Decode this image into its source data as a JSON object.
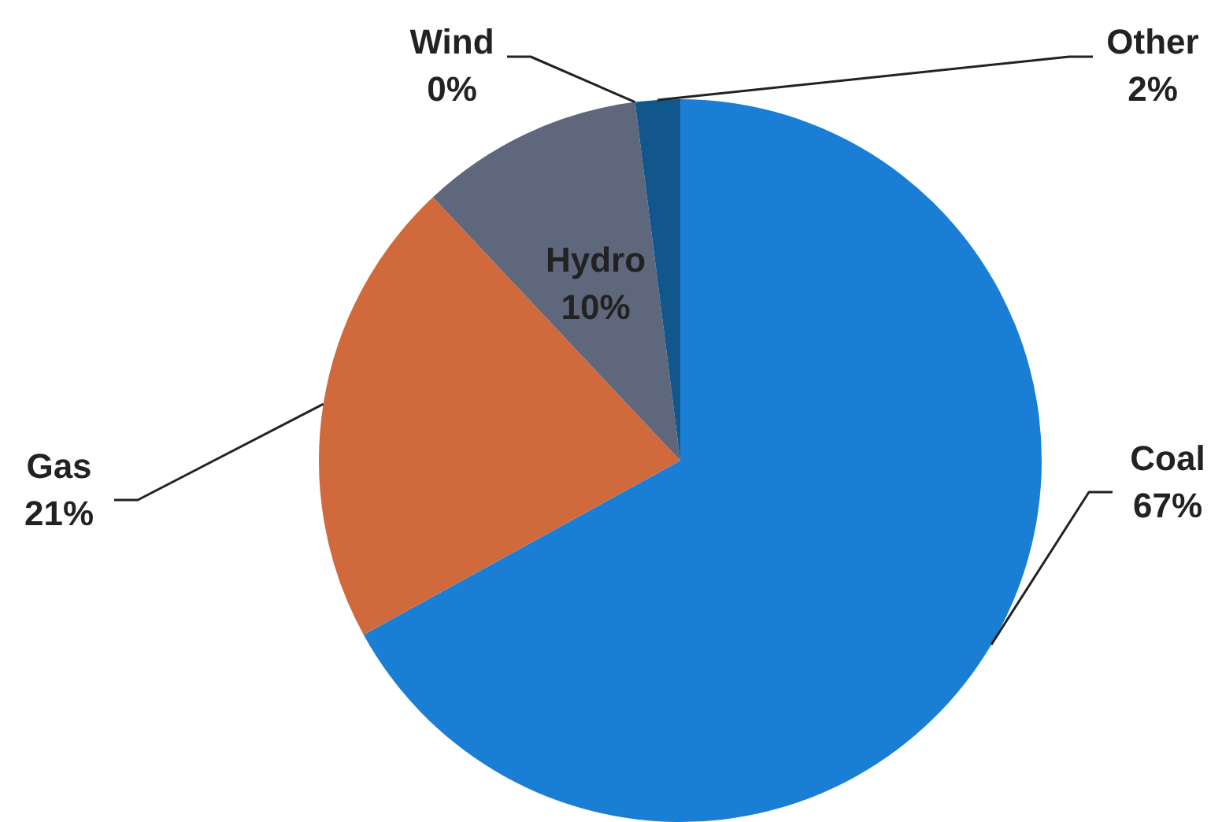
{
  "chart_data": {
    "type": "pie",
    "categories": [
      "Coal",
      "Gas",
      "Hydro",
      "Wind",
      "Other"
    ],
    "values": [
      67,
      21,
      10,
      0,
      2
    ],
    "colors": [
      "#1a7fd4",
      "#d0693b",
      "#5f677c",
      "#3a6f9e",
      "#11578c"
    ],
    "value_labels": [
      "67%",
      "21%",
      "10%",
      "0%",
      "2%"
    ],
    "legend": false
  }
}
